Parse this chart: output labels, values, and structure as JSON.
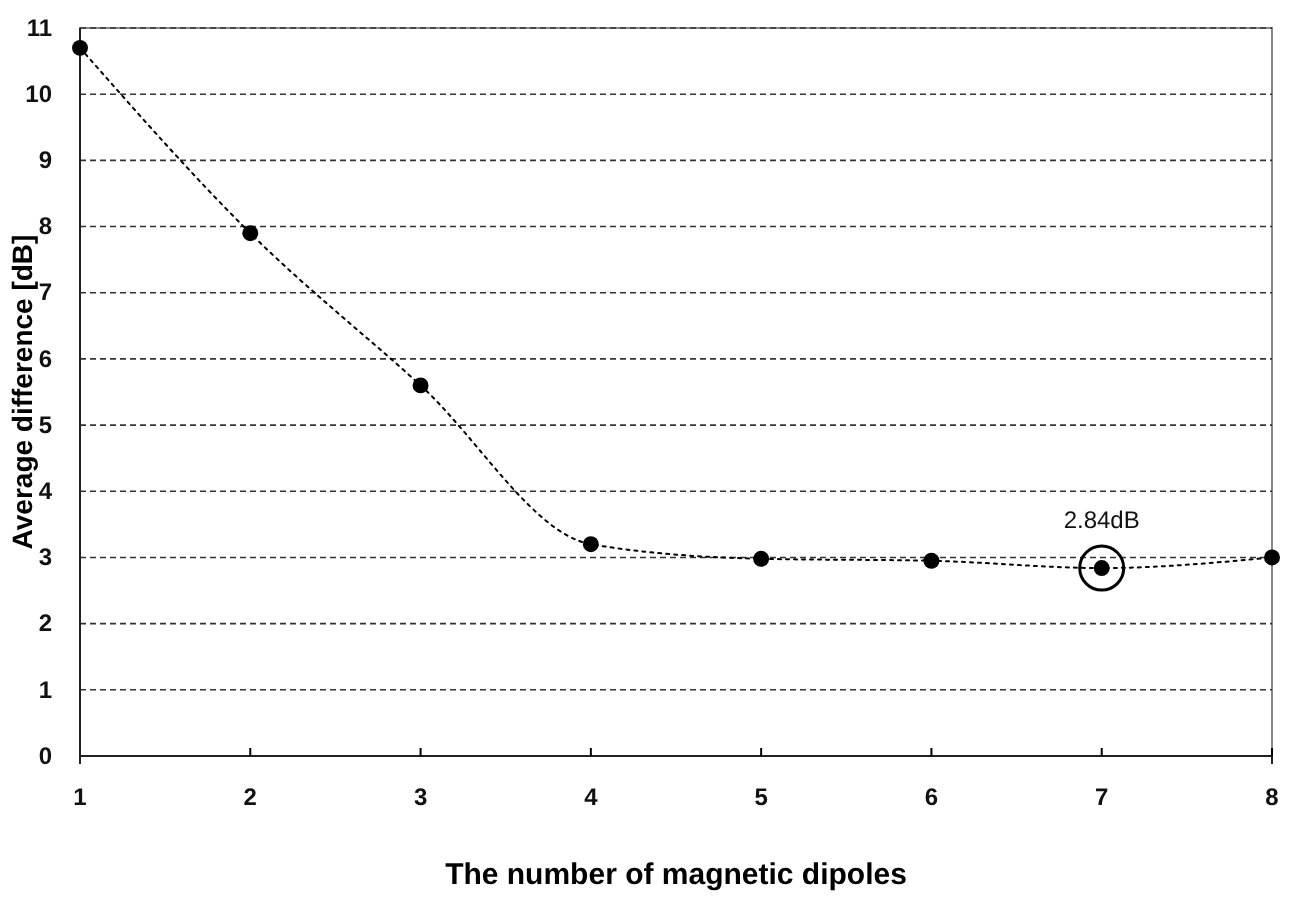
{
  "chart_data": {
    "type": "line",
    "xlabel": "The number of magnetic dipoles",
    "ylabel": "Average difference [dB]",
    "x": [
      1,
      2,
      3,
      4,
      5,
      6,
      7,
      8
    ],
    "series": [
      {
        "color": "#000000",
        "values": [
          10.7,
          7.9,
          5.6,
          3.2,
          2.98,
          2.95,
          2.84,
          3.0
        ]
      }
    ],
    "xlim": [
      1,
      8
    ],
    "xticks": [
      1,
      2,
      3,
      4,
      5,
      6,
      7,
      8
    ],
    "ylim": [
      0,
      11
    ],
    "yticks": [
      0,
      1,
      2,
      3,
      4,
      5,
      6,
      7,
      8,
      9,
      10,
      11
    ],
    "grid": "y",
    "marker": "circle",
    "line_style": "dotted",
    "annotations": [
      {
        "text": "2.84dB",
        "x": 7,
        "y": 2.84
      }
    ]
  }
}
